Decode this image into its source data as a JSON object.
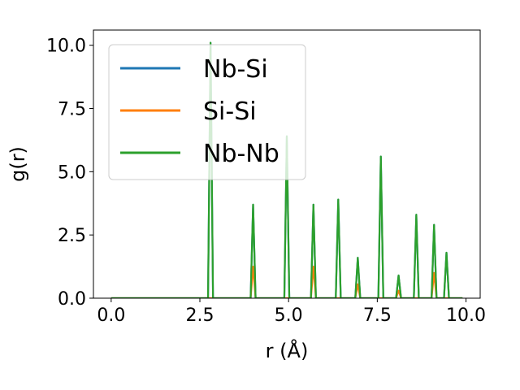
{
  "chart_data": {
    "type": "line",
    "xlabel": "r (Å)",
    "ylabel": "g(r)",
    "xlim": [
      -0.5,
      10.4
    ],
    "ylim": [
      0.0,
      10.6
    ],
    "x_ticks": [
      0.0,
      2.5,
      5.0,
      7.5,
      10.0
    ],
    "x_tick_labels": [
      "0.0",
      "2.5",
      "5.0",
      "7.5",
      "10.0"
    ],
    "y_ticks": [
      0.0,
      2.5,
      5.0,
      7.5,
      10.0
    ],
    "y_tick_labels": [
      "0.0",
      "2.5",
      "5.0",
      "7.5",
      "10.0"
    ],
    "grid": false,
    "legend_position": "upper-left",
    "series": [
      {
        "name": "Nb-Si",
        "color": "#1f77b4",
        "peaks": [
          [
            2.8,
            10.1
          ],
          [
            4.0,
            3.7
          ],
          [
            4.95,
            6.4
          ],
          [
            5.7,
            3.7
          ],
          [
            6.4,
            3.9
          ],
          [
            6.95,
            1.6
          ],
          [
            7.6,
            5.6
          ],
          [
            8.1,
            0.9
          ],
          [
            8.6,
            3.3
          ],
          [
            9.1,
            2.9
          ],
          [
            9.45,
            1.8
          ]
        ]
      },
      {
        "name": "Si-Si",
        "color": "#ff7f0e",
        "peaks": [
          [
            4.0,
            1.25
          ],
          [
            5.7,
            1.25
          ],
          [
            6.95,
            0.55
          ],
          [
            8.1,
            0.3
          ],
          [
            9.1,
            1.0
          ]
        ]
      },
      {
        "name": "Nb-Nb",
        "color": "#2ca02c",
        "peaks": [
          [
            2.8,
            10.1
          ],
          [
            4.0,
            3.7
          ],
          [
            4.95,
            6.4
          ],
          [
            5.7,
            3.7
          ],
          [
            6.4,
            3.9
          ],
          [
            6.95,
            1.6
          ],
          [
            7.6,
            5.6
          ],
          [
            8.1,
            0.9
          ],
          [
            8.6,
            3.3
          ],
          [
            9.1,
            2.9
          ],
          [
            9.45,
            1.8
          ]
        ]
      }
    ]
  }
}
